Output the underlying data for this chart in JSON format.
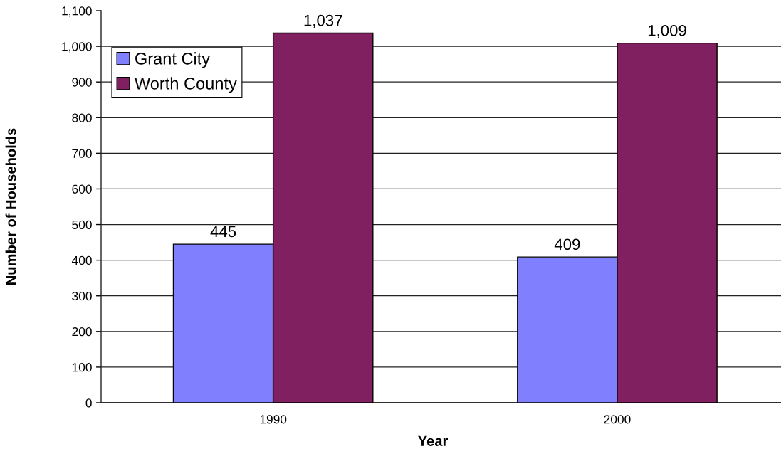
{
  "chart_data": {
    "type": "bar",
    "xlabel": "Year",
    "ylabel": "Number of Households",
    "categories": [
      "1990",
      "2000"
    ],
    "series": [
      {
        "name": "Grant City",
        "color": "#8080ff",
        "values": [
          445,
          409
        ],
        "value_labels": [
          "445",
          "409"
        ]
      },
      {
        "name": "Worth County",
        "color": "#802060",
        "values": [
          1037,
          1009
        ],
        "value_labels": [
          "1,037",
          "1,009"
        ]
      }
    ],
    "ylim": [
      0,
      1100
    ],
    "yticks": [
      0,
      100,
      200,
      300,
      400,
      500,
      600,
      700,
      800,
      900,
      {
        "value": 1000,
        "label": "1,000"
      },
      {
        "value": 1100,
        "label": "1,100"
      }
    ],
    "grid": "y",
    "legend": "top left"
  }
}
